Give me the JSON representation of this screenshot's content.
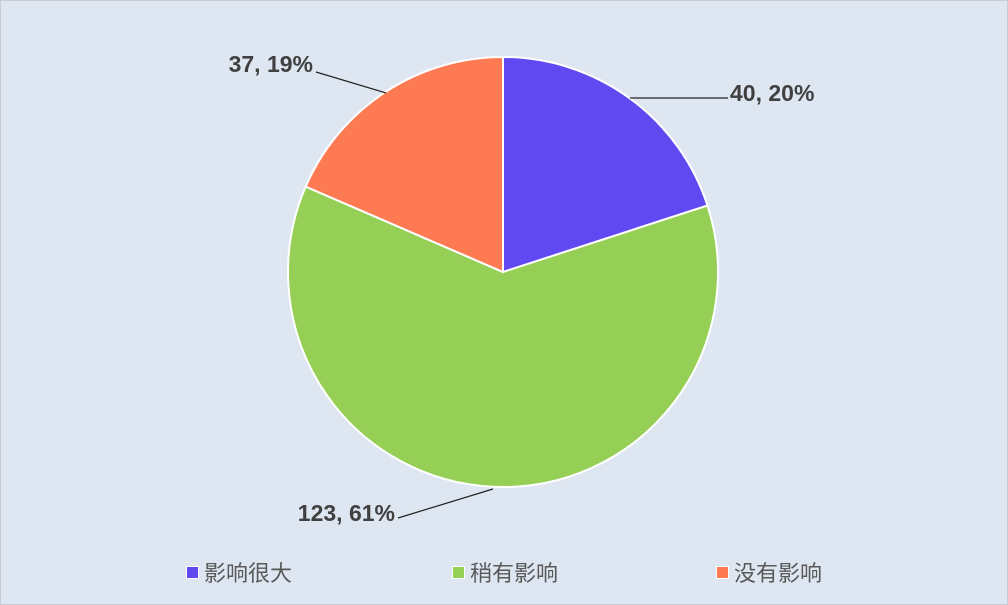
{
  "chart_data": {
    "type": "pie",
    "title": "",
    "categories": [
      "影响很大",
      "稍有影响",
      "没有影响"
    ],
    "values": [
      40,
      123,
      37
    ],
    "percent_labels": [
      "20%",
      "61%",
      "19%"
    ],
    "data_labels": [
      "40, 20%",
      "123, 61%",
      "37, 19%"
    ],
    "colors": [
      "#6149f2",
      "#95cf55",
      "#fe7a53"
    ],
    "start_angle": "top, clockwise",
    "legend": {
      "position": "bottom",
      "entries": [
        "影响很大",
        "稍有影响",
        "没有影响"
      ]
    },
    "background": "#dee6f1"
  }
}
